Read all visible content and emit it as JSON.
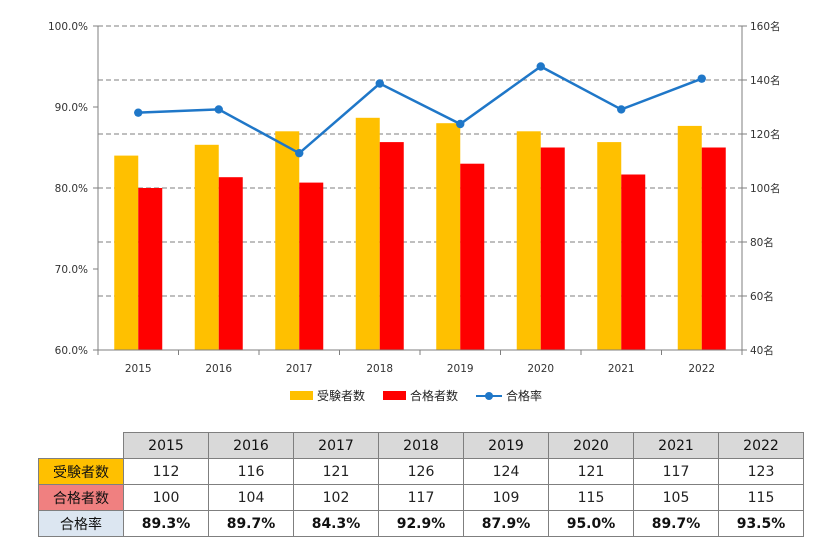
{
  "chart_data": {
    "type": "bar",
    "categories": [
      "2015",
      "2016",
      "2017",
      "2018",
      "2019",
      "2020",
      "2021",
      "2022"
    ],
    "series": [
      {
        "name": "受験者数",
        "axis": "right",
        "color": "#ffc000",
        "values": [
          112,
          116,
          121,
          126,
          124,
          121,
          117,
          123
        ]
      },
      {
        "name": "合格者数",
        "axis": "right",
        "color": "#ff0000",
        "values": [
          100,
          104,
          102,
          117,
          109,
          115,
          105,
          115
        ]
      },
      {
        "name": "合格率",
        "axis": "left",
        "type": "line",
        "color": "#1f77c8",
        "values": [
          89.3,
          89.7,
          84.3,
          92.9,
          87.9,
          95.0,
          89.7,
          93.5
        ]
      }
    ],
    "left_axis": {
      "min": 60,
      "max": 100,
      "ticks": [
        "60.0%",
        "70.0%",
        "80.0%",
        "90.0%",
        "100.0%"
      ]
    },
    "right_axis": {
      "min": 40,
      "max": 160,
      "ticks": [
        "40名",
        "60名",
        "80名",
        "100名",
        "120名",
        "140名",
        "160名"
      ]
    },
    "grid": "dashed-horizontal",
    "legend_position": "bottom"
  },
  "table": {
    "years": [
      "2015",
      "2016",
      "2017",
      "2018",
      "2019",
      "2020",
      "2021",
      "2022"
    ],
    "rows": [
      {
        "label": "受験者数",
        "color": "#ffc000",
        "values": [
          "112",
          "116",
          "121",
          "126",
          "124",
          "121",
          "117",
          "123"
        ],
        "bold": false
      },
      {
        "label": "合格者数",
        "color": "#f08080",
        "values": [
          "100",
          "104",
          "102",
          "117",
          "109",
          "115",
          "105",
          "115"
        ],
        "bold": false
      },
      {
        "label": "合格率",
        "color": "#dce6f1",
        "values": [
          "89.3%",
          "89.7%",
          "84.3%",
          "92.9%",
          "87.9%",
          "95.0%",
          "89.7%",
          "93.5%"
        ],
        "bold": true
      }
    ]
  }
}
